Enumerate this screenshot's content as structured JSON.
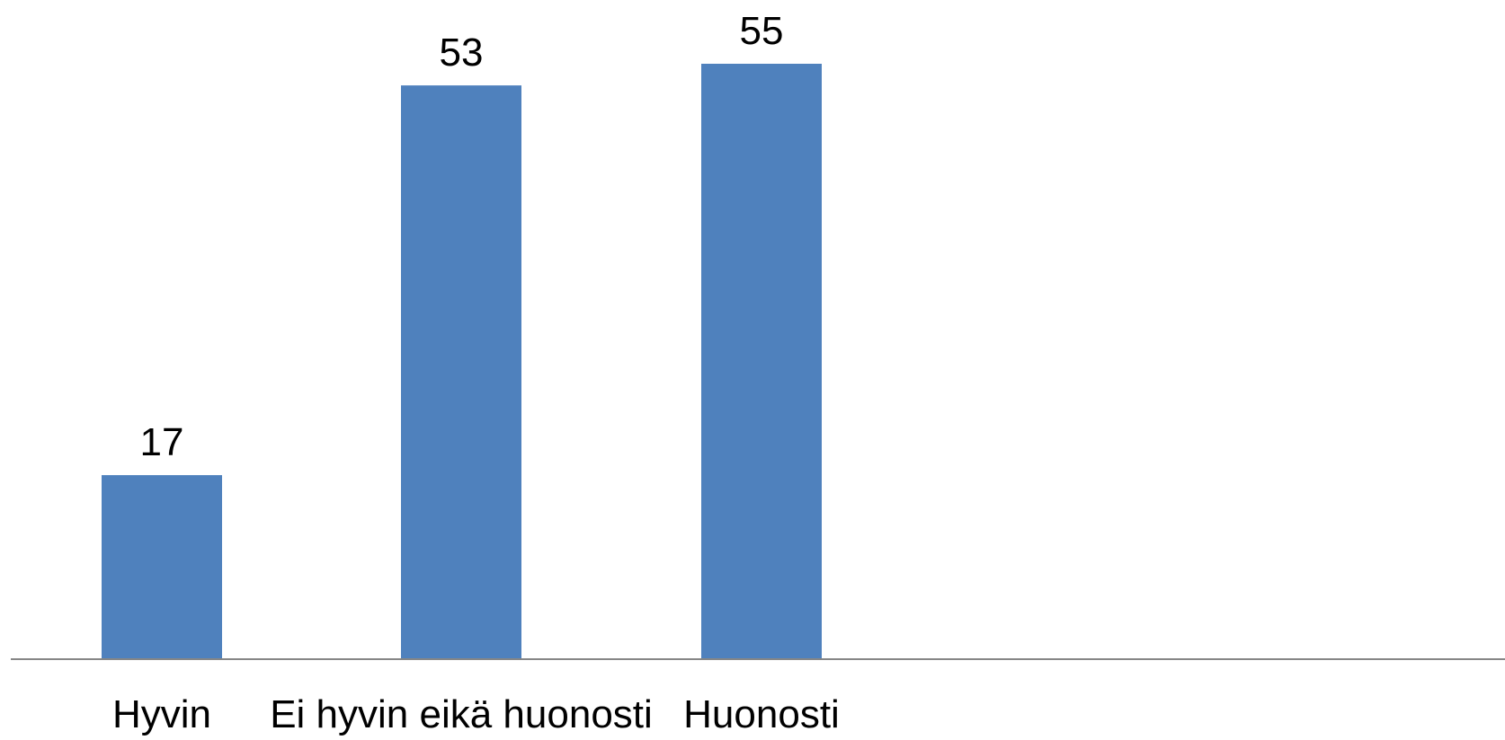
{
  "chart_data": {
    "type": "bar",
    "categories": [
      "Hyvin",
      "Ei hyvin eikä huonosti",
      "Huonosti"
    ],
    "values": [
      17,
      53,
      55
    ],
    "title": "",
    "xlabel": "",
    "ylabel": "",
    "ylim": [
      0,
      55
    ],
    "grid": false,
    "legend": "none",
    "data_labels": true,
    "bar_color": "#4f81bd",
    "axis_color": "#868686"
  }
}
